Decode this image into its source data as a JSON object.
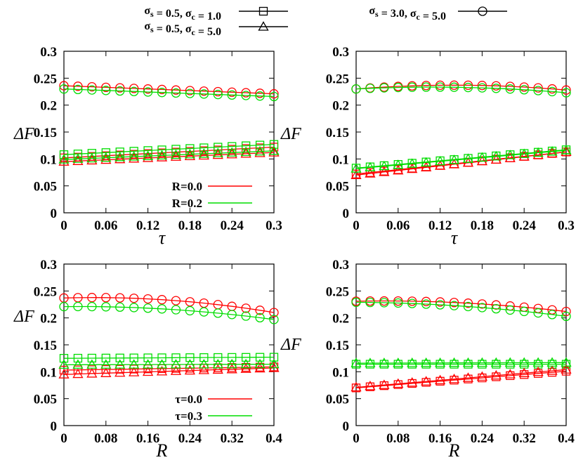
{
  "colors": {
    "red": "#ff0000",
    "green": "#00dd00",
    "black": "#000000"
  },
  "top_legend": [
    {
      "label": "σs = 0.5, σc = 1.0",
      "marker": "square"
    },
    {
      "label": "σs = 0.5, σc = 5.0",
      "marker": "triangle"
    },
    {
      "label": "σs = 3.0, σc = 5.0",
      "marker": "circle"
    }
  ],
  "chart_data": [
    {
      "type": "line",
      "panel": "top-left",
      "xlabel": "τ",
      "ylabel": "ΔF",
      "xlim": [
        0,
        0.3
      ],
      "ylim": [
        0,
        0.3
      ],
      "xticks": [
        "0",
        "0.06",
        "0.12",
        "0.18",
        "0.24",
        "0.3"
      ],
      "yticks": [
        "0",
        "0.05",
        "0.1",
        "0.15",
        "0.2",
        "0.25",
        "0.3"
      ],
      "legend": {
        "position": "bottom-right",
        "entries": [
          {
            "label": "R=0.0",
            "color": "#ff0000"
          },
          {
            "label": "R=0.2",
            "color": "#00dd00"
          }
        ]
      },
      "x_range": [
        0,
        0.3
      ],
      "n_points": 16,
      "series": [
        {
          "color": "#ff0000",
          "marker": "circle",
          "start": 0.236,
          "end": 0.221
        },
        {
          "color": "#00dd00",
          "marker": "circle",
          "start": 0.23,
          "end": 0.216
        },
        {
          "color": "#ff0000",
          "marker": "square",
          "start": 0.102,
          "end": 0.122
        },
        {
          "color": "#00dd00",
          "marker": "square",
          "start": 0.108,
          "end": 0.127
        },
        {
          "color": "#ff0000",
          "marker": "triangle",
          "start": 0.095,
          "end": 0.112
        },
        {
          "color": "#00dd00",
          "marker": "triangle",
          "start": 0.099,
          "end": 0.115
        }
      ]
    },
    {
      "type": "line",
      "panel": "top-right",
      "xlabel": "τ",
      "ylabel": "ΔF",
      "xlim": [
        0,
        0.3
      ],
      "ylim": [
        0,
        0.3
      ],
      "xticks": [
        "0",
        "0.06",
        "0.12",
        "0.18",
        "0.24",
        "0.3"
      ],
      "yticks": [
        "0",
        "0.05",
        "0.1",
        "0.15",
        "0.2",
        "0.25",
        "0.3"
      ],
      "x_range": [
        0,
        0.3
      ],
      "n_points": 16,
      "series": [
        {
          "color": "#ff0000",
          "marker": "circle",
          "start": 0.23,
          "mid": 0.237,
          "end": 0.228
        },
        {
          "color": "#00dd00",
          "marker": "circle",
          "start": 0.23,
          "mid": 0.233,
          "end": 0.223
        },
        {
          "color": "#ff0000",
          "marker": "square",
          "start": 0.072,
          "end": 0.113
        },
        {
          "color": "#00dd00",
          "marker": "square",
          "start": 0.083,
          "end": 0.117
        },
        {
          "color": "#ff0000",
          "marker": "triangle",
          "start": 0.07,
          "end": 0.113
        },
        {
          "color": "#00dd00",
          "marker": "triangle",
          "start": 0.082,
          "end": 0.116
        }
      ]
    },
    {
      "type": "line",
      "panel": "bottom-left",
      "xlabel": "R",
      "ylabel": "ΔF",
      "xlim": [
        0,
        0.4
      ],
      "ylim": [
        0,
        0.3
      ],
      "xticks": [
        "0",
        "0.08",
        "0.16",
        "0.24",
        "0.32",
        "0.4"
      ],
      "yticks": [
        "0",
        "0.05",
        "0.1",
        "0.15",
        "0.2",
        "0.25",
        "0.3"
      ],
      "legend": {
        "position": "bottom-right",
        "entries": [
          {
            "label": "τ=0.0",
            "color": "#ff0000"
          },
          {
            "label": "τ=0.3",
            "color": "#00dd00"
          }
        ]
      },
      "x_range": [
        0,
        0.4
      ],
      "n_points": 16,
      "series": [
        {
          "color": "#ff0000",
          "marker": "circle",
          "start": 0.237,
          "mid": 0.233,
          "end": 0.21
        },
        {
          "color": "#00dd00",
          "marker": "circle",
          "start": 0.221,
          "mid": 0.216,
          "end": 0.197
        },
        {
          "color": "#ff0000",
          "marker": "square",
          "start": 0.103,
          "end": 0.109
        },
        {
          "color": "#00dd00",
          "marker": "square",
          "start": 0.125,
          "end": 0.127
        },
        {
          "color": "#ff0000",
          "marker": "triangle",
          "start": 0.095,
          "end": 0.107
        },
        {
          "color": "#00dd00",
          "marker": "triangle",
          "start": 0.113,
          "end": 0.114
        }
      ]
    },
    {
      "type": "line",
      "panel": "bottom-right",
      "xlabel": "R",
      "ylabel": "ΔF",
      "xlim": [
        0,
        0.4
      ],
      "ylim": [
        0,
        0.3
      ],
      "xticks": [
        "0",
        "0.08",
        "0.16",
        "0.24",
        "0.32",
        "0.4"
      ],
      "yticks": [
        "0",
        "0.05",
        "0.1",
        "0.15",
        "0.2",
        "0.25",
        "0.3"
      ],
      "x_range": [
        0,
        0.4
      ],
      "n_points": 16,
      "series": [
        {
          "color": "#ff0000",
          "marker": "circle",
          "start": 0.231,
          "mid": 0.228,
          "end": 0.212
        },
        {
          "color": "#00dd00",
          "marker": "circle",
          "start": 0.229,
          "mid": 0.222,
          "end": 0.203
        },
        {
          "color": "#ff0000",
          "marker": "square",
          "start": 0.07,
          "end": 0.101
        },
        {
          "color": "#00dd00",
          "marker": "square",
          "start": 0.114,
          "end": 0.114
        },
        {
          "color": "#ff0000",
          "marker": "triangle",
          "start": 0.071,
          "end": 0.104
        },
        {
          "color": "#00dd00",
          "marker": "triangle",
          "start": 0.116,
          "end": 0.117
        }
      ]
    }
  ]
}
